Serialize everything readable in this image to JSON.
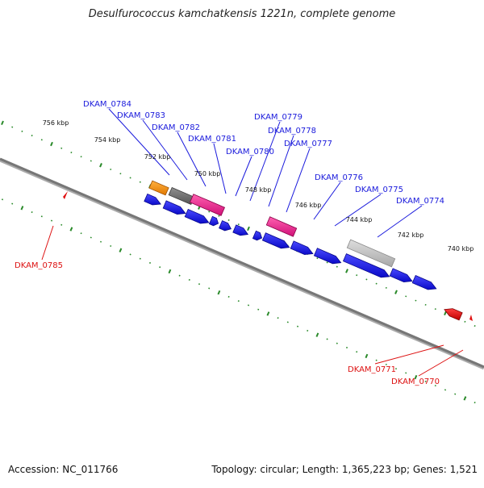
{
  "title": "Desulfurococcus kamchatkensis 1221n, complete genome",
  "footer": {
    "accession": "Accession: NC_011766",
    "summary": "Topology: circular; Length: 1,365,223 bp; Genes: 1,521"
  },
  "tick_labels": [
    "756 kbp",
    "754 kbp",
    "752 kbp",
    "750 kbp",
    "748 kbp",
    "746 kbp",
    "744 kbp",
    "742 kbp",
    "740 kbp"
  ],
  "genes_forward": [
    {
      "name": "DKAM_0784"
    },
    {
      "name": "DKAM_0783"
    },
    {
      "name": "DKAM_0782"
    },
    {
      "name": "DKAM_0781"
    },
    {
      "name": "DKAM_0780"
    },
    {
      "name": "DKAM_0779"
    },
    {
      "name": "DKAM_0778"
    },
    {
      "name": "DKAM_0777"
    },
    {
      "name": "DKAM_0776"
    },
    {
      "name": "DKAM_0775"
    },
    {
      "name": "DKAM_0774"
    }
  ],
  "genes_reverse": [
    {
      "name": "DKAM_0785"
    },
    {
      "name": "DKAM_0771"
    },
    {
      "name": "DKAM_0770"
    }
  ],
  "colors": {
    "forward_label": "#1a1adc",
    "reverse_label": "#dd1111",
    "cds_blue": "#1010e0",
    "orange": "#f08a00",
    "magenta": "#e8208a",
    "dark_gray": "#707070",
    "light_gray": "#bbbbbb",
    "red": "#e01010",
    "tick": "#2a8a2a",
    "backbone": "#777777"
  }
}
